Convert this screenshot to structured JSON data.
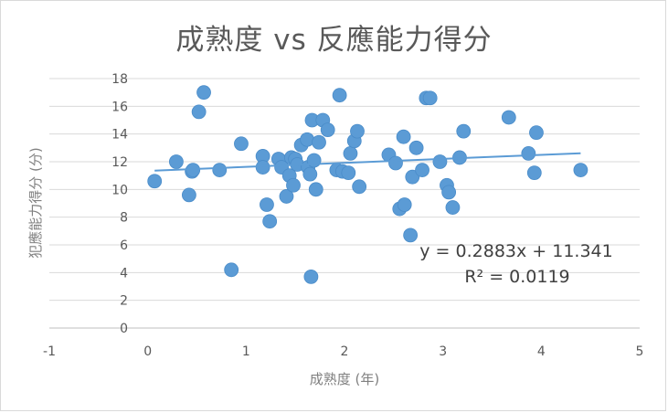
{
  "chart_data": {
    "type": "scatter",
    "title": "成熟度 vs 反應能力得分",
    "xlabel": "成熟度 (年)",
    "ylabel": "犯應能力得分 (分)",
    "xlim": [
      -1,
      5
    ],
    "ylim": [
      0,
      18
    ],
    "x_ticks": [
      -1,
      0,
      1,
      2,
      3,
      4,
      5
    ],
    "y_ticks": [
      0,
      2,
      4,
      6,
      8,
      10,
      12,
      14,
      16,
      18
    ],
    "grid": {
      "horizontal": true,
      "vertical": false
    },
    "marker_color": "#5b9bd5",
    "trendline": {
      "type": "linear",
      "slope": 0.2883,
      "intercept": 11.341,
      "x_range": [
        0.07,
        4.4
      ],
      "color": "#5b9bd5",
      "equation": "y = 0.2883x + 11.341",
      "r_squared": "R² = 0.0119"
    },
    "points": [
      [
        0.07,
        10.6
      ],
      [
        0.29,
        12.0
      ],
      [
        0.42,
        9.6
      ],
      [
        0.45,
        11.3
      ],
      [
        0.46,
        11.4
      ],
      [
        0.52,
        15.6
      ],
      [
        0.57,
        17.0
      ],
      [
        0.73,
        11.4
      ],
      [
        0.85,
        4.2
      ],
      [
        0.95,
        13.3
      ],
      [
        1.17,
        12.4
      ],
      [
        1.17,
        11.6
      ],
      [
        1.21,
        8.9
      ],
      [
        1.24,
        7.7
      ],
      [
        1.33,
        12.2
      ],
      [
        1.36,
        11.6
      ],
      [
        1.41,
        9.5
      ],
      [
        1.44,
        11.0
      ],
      [
        1.46,
        12.3
      ],
      [
        1.48,
        10.3
      ],
      [
        1.5,
        12.2
      ],
      [
        1.52,
        11.8
      ],
      [
        1.56,
        13.2
      ],
      [
        1.62,
        13.6
      ],
      [
        1.63,
        11.6
      ],
      [
        1.65,
        11.1
      ],
      [
        1.66,
        3.7
      ],
      [
        1.67,
        15.0
      ],
      [
        1.69,
        12.1
      ],
      [
        1.71,
        10.0
      ],
      [
        1.74,
        13.4
      ],
      [
        1.78,
        15.0
      ],
      [
        1.83,
        14.3
      ],
      [
        1.92,
        11.4
      ],
      [
        1.95,
        16.8
      ],
      [
        1.98,
        11.3
      ],
      [
        2.04,
        11.2
      ],
      [
        2.06,
        12.6
      ],
      [
        2.1,
        13.5
      ],
      [
        2.13,
        14.2
      ],
      [
        2.15,
        10.2
      ],
      [
        2.45,
        12.5
      ],
      [
        2.52,
        11.9
      ],
      [
        2.56,
        8.6
      ],
      [
        2.6,
        13.8
      ],
      [
        2.61,
        8.9
      ],
      [
        2.67,
        6.7
      ],
      [
        2.69,
        10.9
      ],
      [
        2.73,
        13.0
      ],
      [
        2.79,
        11.4
      ],
      [
        2.83,
        16.6
      ],
      [
        2.87,
        16.6
      ],
      [
        2.97,
        12.0
      ],
      [
        3.04,
        10.3
      ],
      [
        3.06,
        9.8
      ],
      [
        3.1,
        8.7
      ],
      [
        3.17,
        12.3
      ],
      [
        3.21,
        14.2
      ],
      [
        3.67,
        15.2
      ],
      [
        3.87,
        12.6
      ],
      [
        3.93,
        11.2
      ],
      [
        3.95,
        14.1
      ],
      [
        4.4,
        11.4
      ]
    ]
  }
}
